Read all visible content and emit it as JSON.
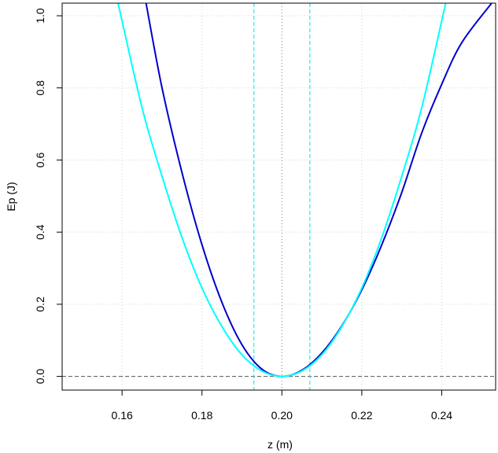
{
  "chart_data": {
    "type": "line",
    "xlabel": "z  (m)",
    "ylabel": "Ep  (J)",
    "xlim": [
      0.145,
      0.2535
    ],
    "ylim": [
      -0.038,
      1.035
    ],
    "x_ticks": [
      0.16,
      0.18,
      0.2,
      0.22,
      0.24
    ],
    "x_tick_labels": [
      "0.16",
      "0.18",
      "0.20",
      "0.22",
      "0.24"
    ],
    "y_ticks": [
      0.0,
      0.2,
      0.4,
      0.6,
      0.8,
      1.0
    ],
    "y_tick_labels": [
      "0.0",
      "0.2",
      "0.4",
      "0.6",
      "0.8",
      "1.0"
    ],
    "grid": true,
    "series": [
      {
        "color": "#0000CD",
        "style": "solid",
        "x": [
          0.166,
          0.17,
          0.175,
          0.18,
          0.185,
          0.19,
          0.195,
          0.2,
          0.205,
          0.21,
          0.215,
          0.22,
          0.225,
          0.23,
          0.235,
          0.24,
          0.245,
          0.2525
        ],
        "y": [
          1.035,
          0.8,
          0.565,
          0.365,
          0.205,
          0.088,
          0.02,
          0.0,
          0.017,
          0.065,
          0.14,
          0.24,
          0.365,
          0.51,
          0.675,
          0.81,
          0.925,
          1.035
        ]
      },
      {
        "color": "#00FFFF",
        "style": "solid",
        "x": [
          0.159,
          0.165,
          0.17,
          0.175,
          0.18,
          0.185,
          0.19,
          0.195,
          0.2,
          0.205,
          0.21,
          0.215,
          0.22,
          0.225,
          0.23,
          0.235,
          0.241
        ],
        "y": [
          1.035,
          0.745,
          0.555,
          0.385,
          0.245,
          0.138,
          0.06,
          0.015,
          0.0,
          0.015,
          0.06,
          0.138,
          0.245,
          0.385,
          0.555,
          0.745,
          1.035
        ]
      }
    ],
    "reference_lines": [
      {
        "orientation": "horizontal",
        "value": 0.0,
        "color": "#555555",
        "style": "dashed"
      },
      {
        "orientation": "vertical",
        "value": 0.2,
        "color": "#888888",
        "style": "dotted"
      },
      {
        "orientation": "vertical",
        "value": 0.193,
        "color": "#00E5EE",
        "style": "dashed"
      },
      {
        "orientation": "vertical",
        "value": 0.207,
        "color": "#00E5EE",
        "style": "dashed"
      }
    ]
  }
}
